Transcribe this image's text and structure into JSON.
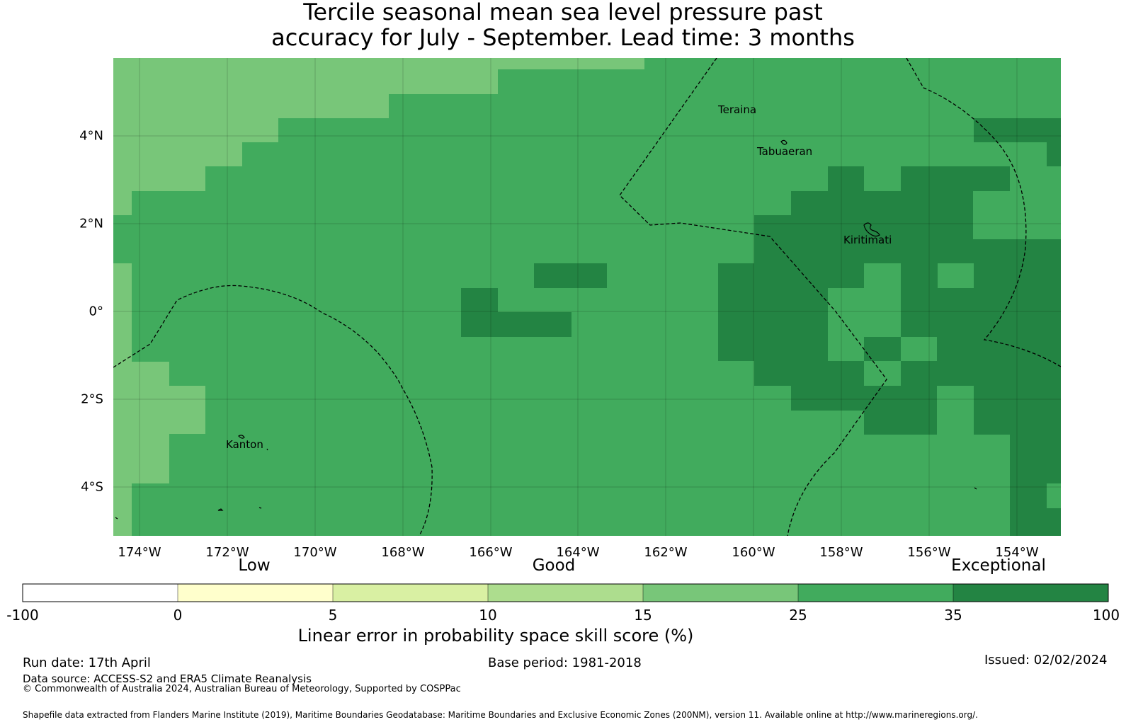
{
  "title": {
    "line1": "Tercile seasonal mean sea level pressure past",
    "line2": "accuracy for July - September. Lead time: 3 months"
  },
  "map": {
    "lon_ticks": [
      "174°W",
      "172°W",
      "170°W",
      "168°W",
      "166°W",
      "164°W",
      "162°W",
      "160°W",
      "158°W",
      "156°W",
      "154°W"
    ],
    "lat_ticks": [
      "4°N",
      "2°N",
      "0°",
      "2°S",
      "4°S"
    ],
    "places": [
      "Teraina",
      "Tabuaeran",
      "Kiritimati",
      "Kanton"
    ],
    "colors": {
      "c_15_25": "#78c679",
      "c_25_35": "#41ab5d",
      "c_35_100": "#238443",
      "boundary": "#000000"
    }
  },
  "colorbar": {
    "categories": [
      "Low",
      "Good",
      "Exceptional"
    ],
    "ticks": [
      "-100",
      "0",
      "5",
      "10",
      "15",
      "25",
      "35",
      "100"
    ],
    "colors": [
      "#ffffff",
      "#ffffcc",
      "#d9f0a3",
      "#addd8e",
      "#78c679",
      "#41ab5d",
      "#238443"
    ],
    "label": "Linear error in probability space skill score (%)"
  },
  "footer": {
    "run_date": "Run date: 17th April",
    "base_period": "Base period: 1981-2018",
    "issued": "Issued: 02/02/2024",
    "data_source": "Data source: ACCESS-S2 and ERA5 Climate Reanalysis",
    "copyright": "© Commonwealth of Australia 2024, Australian Bureau of Meteorology, Supported by COSPPac",
    "shapefile": "Shapefile data extracted from Flanders Marine Institute (2019), Maritime Boundaries Geodatabase: Maritime Boundaries and Exclusive Economic Zones (200NM), version 11. Available online at http://www.marineregions.org/."
  }
}
